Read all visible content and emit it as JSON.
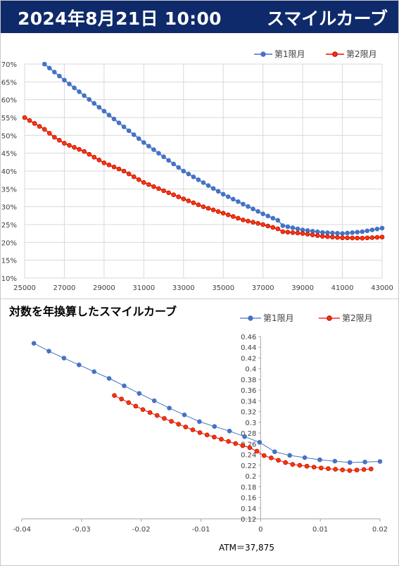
{
  "header": {
    "date": "2024年8月21日 10:00",
    "title": "スマイルカーブ"
  },
  "chart2_title": "対数を年換算したスマイルカーブ",
  "atm_note": "ATM＝37,875",
  "colors": {
    "header_bg": "#0e2a6a",
    "series1": "#4472c4",
    "series2": "#ff0000",
    "series2_fill": "#ff3300",
    "grid": "#d9d9d9"
  },
  "chart_data": [
    {
      "type": "line",
      "title": "",
      "xlabel": "",
      "ylabel": "",
      "xlim": [
        25000,
        43000
      ],
      "ylim": [
        0.1,
        0.7
      ],
      "xticks": [
        "25000",
        "27000",
        "29000",
        "31000",
        "33000",
        "35000",
        "37000",
        "39000",
        "41000",
        "43000"
      ],
      "yticks": [
        "10%",
        "15%",
        "20%",
        "25%",
        "30%",
        "35%",
        "40%",
        "45%",
        "50%",
        "55%",
        "60%",
        "65%",
        "70%"
      ],
      "grid": true,
      "legend": "top-right",
      "series": [
        {
          "name": "第1限月",
          "step": 250,
          "x_start": 26000,
          "y_start": 0.7,
          "knots": [
            [
              26000,
              0.7
            ],
            [
              27000,
              0.655
            ],
            [
              29000,
              0.568
            ],
            [
              31000,
              0.48
            ],
            [
              33000,
              0.4
            ],
            [
              35000,
              0.335
            ],
            [
              37000,
              0.28
            ],
            [
              37750,
              0.262
            ],
            [
              38000,
              0.247
            ],
            [
              39000,
              0.235
            ],
            [
              40000,
              0.228
            ],
            [
              41000,
              0.225
            ],
            [
              42000,
              0.23
            ],
            [
              43000,
              0.24
            ]
          ]
        },
        {
          "name": "第2限月",
          "step": 250,
          "knots": [
            [
              25000,
              0.55
            ],
            [
              26000,
              0.517
            ],
            [
              26500,
              0.495
            ],
            [
              27000,
              0.478
            ],
            [
              28000,
              0.455
            ],
            [
              29000,
              0.423
            ],
            [
              30000,
              0.4
            ],
            [
              31000,
              0.368
            ],
            [
              32000,
              0.345
            ],
            [
              33000,
              0.322
            ],
            [
              34000,
              0.3
            ],
            [
              35000,
              0.282
            ],
            [
              36000,
              0.263
            ],
            [
              37000,
              0.25
            ],
            [
              37750,
              0.238
            ],
            [
              38000,
              0.23
            ],
            [
              39000,
              0.225
            ],
            [
              40000,
              0.217
            ],
            [
              41000,
              0.213
            ],
            [
              42000,
              0.212
            ],
            [
              43000,
              0.215
            ]
          ]
        }
      ]
    },
    {
      "type": "line",
      "title": "対数を年換算したスマイルカーブ",
      "xlabel": "",
      "ylabel": "",
      "xlim": [
        -0.04,
        0.02
      ],
      "ylim": [
        0.12,
        0.46
      ],
      "xticks": [
        "-0.04",
        "-0.03",
        "-0.02",
        "-0.01",
        "0",
        "0.01",
        "0.02"
      ],
      "yticks": [
        "0.12",
        "0.14",
        "0.16",
        "0.18",
        "0.2",
        "0.22",
        "0.24",
        "0.26",
        "0.28",
        "0.3",
        "0.32",
        "0.34",
        "0.36",
        "0.38",
        "0.4",
        "0.42",
        "0.44",
        "0.46"
      ],
      "grid": false,
      "legend": "top-right",
      "series": [
        {
          "name": "第1限月",
          "knots": [
            [
              -0.0405,
              0.462
            ],
            [
              -0.035,
              0.43
            ],
            [
              -0.03,
              0.405
            ],
            [
              -0.025,
              0.38
            ],
            [
              -0.02,
              0.352
            ],
            [
              -0.015,
              0.325
            ],
            [
              -0.01,
              0.3
            ],
            [
              -0.005,
              0.283
            ],
            [
              0,
              0.262
            ],
            [
              0.0005,
              0.25
            ],
            [
              0.005,
              0.238
            ],
            [
              0.01,
              0.23
            ],
            [
              0.015,
              0.225
            ],
            [
              0.02,
              0.227
            ]
          ],
          "step": 0.0025
        },
        {
          "name": "第2限月",
          "knots": [
            [
              -0.0245,
              0.35
            ],
            [
              -0.02,
              0.325
            ],
            [
              -0.015,
              0.302
            ],
            [
              -0.01,
              0.28
            ],
            [
              -0.005,
              0.263
            ],
            [
              -0.001,
              0.25
            ],
            [
              0,
              0.24
            ],
            [
              0.005,
              0.222
            ],
            [
              0.01,
              0.215
            ],
            [
              0.015,
              0.21
            ],
            [
              0.0185,
              0.213
            ]
          ],
          "step": 0.0012
        }
      ]
    }
  ]
}
